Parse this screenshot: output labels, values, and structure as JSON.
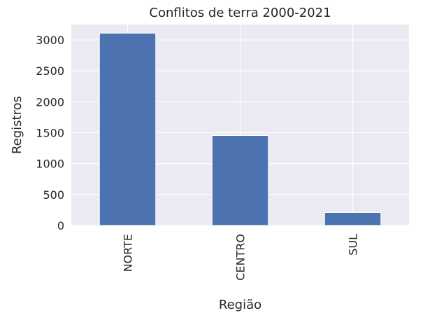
{
  "chart_data": {
    "type": "bar",
    "title": "Conflitos de terra 2000-2021",
    "xlabel": "Região",
    "ylabel": "Registros",
    "categories": [
      "NORTE",
      "CENTRO",
      "SUL"
    ],
    "values": [
      3110,
      1455,
      210
    ],
    "ylim": [
      0,
      3250
    ],
    "yticks": [
      0,
      500,
      1000,
      1500,
      2000,
      2500,
      3000
    ],
    "grid": true,
    "legend": "none",
    "colors": {
      "bar": "#4c72b0",
      "plot_background": "#eaeaf2",
      "grid": "#ffffff"
    }
  }
}
